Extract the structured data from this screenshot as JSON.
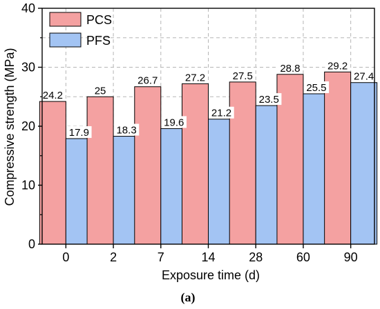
{
  "chart_data": {
    "type": "bar",
    "xlabel": "Exposure time (d)",
    "ylabel": "Compressive strength (MPa)",
    "ylim": [
      0,
      40
    ],
    "yticks": [
      0,
      10,
      20,
      30,
      40
    ],
    "categories": [
      "0",
      "2",
      "7",
      "14",
      "28",
      "60",
      "90"
    ],
    "series": [
      {
        "name": "PCS",
        "color": "#f4a1a1",
        "values": [
          24.2,
          25,
          26.7,
          27.2,
          27.5,
          28.8,
          29.2
        ],
        "labels": [
          "24.2",
          "25",
          "26.7",
          "27.2",
          "27.5",
          "28.8",
          "29.2"
        ]
      },
      {
        "name": "PFS",
        "color": "#a3c4f3",
        "values": [
          17.9,
          18.3,
          19.6,
          21.2,
          23.5,
          25.5,
          27.4
        ],
        "labels": [
          "17.9",
          "18.3",
          "19.6",
          "21.2",
          "23.5",
          "25.5",
          "27.4"
        ]
      }
    ],
    "grid": true,
    "legend_position": "top-left"
  },
  "caption": "(a)"
}
